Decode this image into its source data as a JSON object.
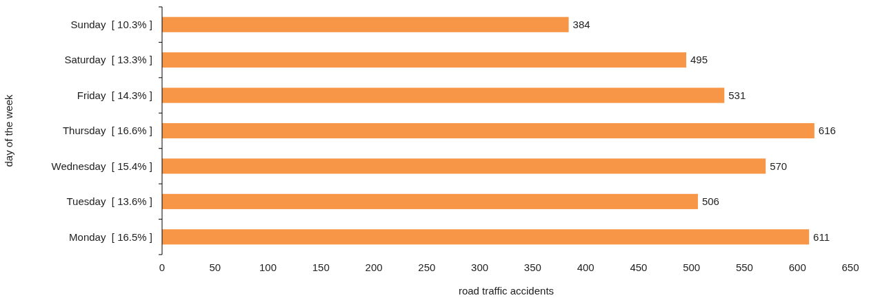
{
  "chart_data": {
    "type": "bar",
    "orientation": "horizontal",
    "xlabel": "road traffic accidents",
    "ylabel": "day of the week",
    "categories": [
      "Sunday  [ 10.3% ]",
      "Saturday  [ 13.3% ]",
      "Friday  [ 14.3% ]",
      "Thursday  [ 16.6% ]",
      "Wednesday  [ 15.4% ]",
      "Tuesday  [ 13.6% ]",
      "Monday  [ 16.5% ]"
    ],
    "values": [
      384,
      495,
      531,
      616,
      570,
      506,
      611
    ],
    "color": "#f79646",
    "xlim": [
      0,
      650
    ],
    "xticks": [
      0,
      50,
      100,
      150,
      200,
      250,
      300,
      350,
      400,
      450,
      500,
      550,
      600,
      650
    ],
    "data_labels": true,
    "grid": false
  }
}
